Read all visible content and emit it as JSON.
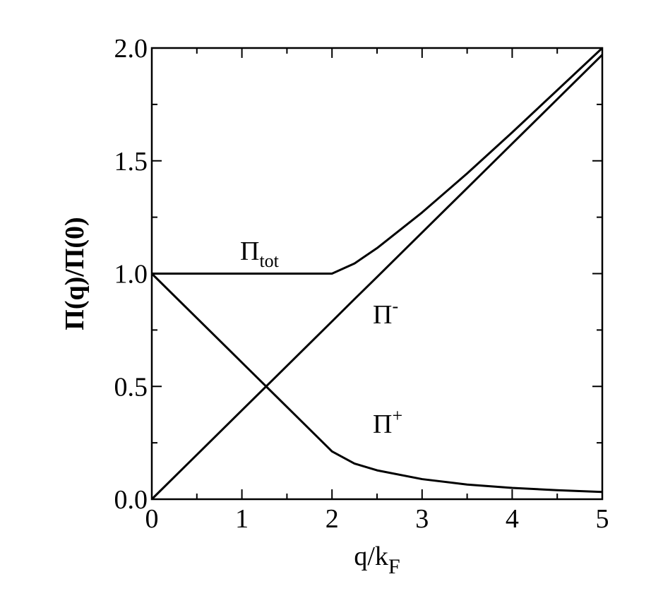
{
  "chart_data": {
    "type": "line",
    "xlabel": {
      "text": "q/k",
      "sub": "F"
    },
    "ylabel": "Π(q)/Π(0)",
    "x": [
      0,
      0.5,
      1,
      1.5,
      2,
      2.25,
      2.5,
      3,
      3.5,
      4,
      4.5,
      5
    ],
    "series": [
      {
        "label": {
          "text": "Π",
          "sub": "tot"
        },
        "color": "#000000",
        "values": [
          1,
          1,
          1,
          1,
          1,
          1.045,
          1.113,
          1.271,
          1.444,
          1.626,
          1.813,
          2.0
        ]
      },
      {
        "label": {
          "text": "Π",
          "sup": "-"
        },
        "color": "#000000",
        "values": [
          0,
          0.197,
          0.394,
          0.591,
          0.788,
          0.887,
          0.985,
          1.182,
          1.379,
          1.576,
          1.773,
          1.97
        ]
      },
      {
        "label": {
          "text": "Π",
          "sup": "+"
        },
        "color": "#000000",
        "values": [
          1,
          0.803,
          0.606,
          0.409,
          0.212,
          0.158,
          0.128,
          0.089,
          0.065,
          0.05,
          0.04,
          0.032
        ]
      }
    ],
    "xlim": [
      0,
      5
    ],
    "ylim": [
      0,
      2
    ],
    "xticks": [
      0,
      1,
      2,
      3,
      4,
      5
    ],
    "yticks": [
      {
        "value": 0,
        "label": "0.0"
      },
      {
        "value": 0.5,
        "label": "0.5"
      },
      {
        "value": 1,
        "label": "1.0"
      },
      {
        "value": 1.5,
        "label": "1.5"
      },
      {
        "value": 2,
        "label": "2.0"
      }
    ],
    "xminor": [
      0.5,
      1.5,
      2.5,
      3.5,
      4.5
    ],
    "yminor": [
      0.25,
      0.75,
      1.25,
      1.75
    ],
    "grid": false
  }
}
